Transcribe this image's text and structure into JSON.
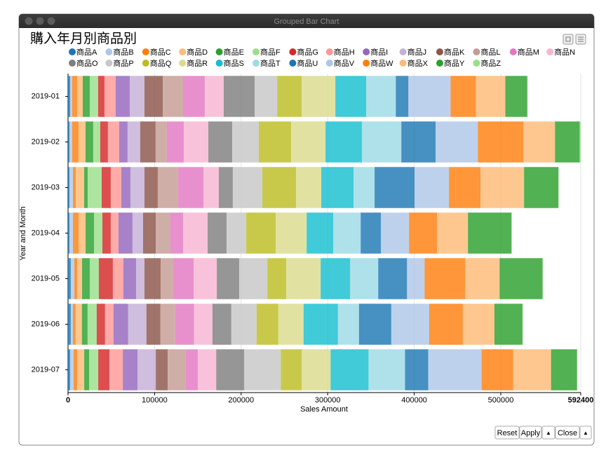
{
  "window_title": "Grouped Bar Chart",
  "buttons": [
    "Reset",
    "Apply",
    "▲",
    "Close",
    "▲"
  ],
  "chart_data": {
    "type": "bar",
    "orientation": "horizontal",
    "stacked": true,
    "title": "購入年月別商品別",
    "x_label": "Sales Amount",
    "y_label": "Year and Month",
    "categories": [
      "2019-01",
      "2019-02",
      "2019-03",
      "2019-04",
      "2019-05",
      "2019-06",
      "2019-07"
    ],
    "xlim": [
      0,
      592400
    ],
    "xticks": [
      0,
      100000,
      200000,
      300000,
      400000,
      500000,
      592400
    ],
    "grid": true,
    "series": [
      {
        "name": "商品A",
        "color": "#1f77b4",
        "values": [
          2400,
          1600,
          1600,
          1600,
          3200,
          3200,
          2400
        ]
      },
      {
        "name": "商品B",
        "color": "#aec7e8",
        "values": [
          2400,
          3200,
          4100,
          4100,
          4100,
          2400,
          4100
        ]
      },
      {
        "name": "商品C",
        "color": "#ff7f0e",
        "values": [
          5700,
          7300,
          3200,
          6500,
          3200,
          3200,
          4100
        ]
      },
      {
        "name": "商品D",
        "color": "#ffbb78",
        "values": [
          6500,
          8100,
          9700,
          8100,
          5700,
          7300,
          8100
        ]
      },
      {
        "name": "商品E",
        "color": "#2ca02c",
        "values": [
          8100,
          8900,
          4100,
          9700,
          8900,
          6500,
          5700
        ]
      },
      {
        "name": "商品F",
        "color": "#98df8a",
        "values": [
          9700,
          8100,
          16200,
          9700,
          10500,
          10500,
          10500
        ]
      },
      {
        "name": "商品G",
        "color": "#d62728",
        "values": [
          7300,
          8900,
          10500,
          9700,
          16200,
          9700,
          13000
        ]
      },
      {
        "name": "商品H",
        "color": "#ff9896",
        "values": [
          13000,
          13000,
          12200,
          8900,
          12200,
          9700,
          15400
        ]
      },
      {
        "name": "商品I",
        "color": "#9467bd",
        "values": [
          16200,
          9700,
          10500,
          16200,
          14600,
          17000,
          17000
        ]
      },
      {
        "name": "商品J",
        "color": "#c5b0d5",
        "values": [
          17000,
          14600,
          16200,
          12200,
          9700,
          21100,
          21100
        ]
      },
      {
        "name": "商品K",
        "color": "#8c564b",
        "values": [
          21100,
          17800,
          15400,
          14600,
          18700,
          16200,
          13800
        ]
      },
      {
        "name": "商品L",
        "color": "#c49c94",
        "values": [
          23500,
          13000,
          23500,
          17000,
          14600,
          17000,
          20300
        ]
      },
      {
        "name": "商品M",
        "color": "#e377c2",
        "values": [
          25100,
          19500,
          29200,
          14600,
          23500,
          21900,
          14600
        ]
      },
      {
        "name": "商品N",
        "color": "#f7b6d2",
        "values": [
          21900,
          28400,
          17800,
          28400,
          26800,
          21100,
          21100
        ]
      },
      {
        "name": "商品O",
        "color": "#7f7f7f",
        "values": [
          35700,
          27600,
          16200,
          21900,
          26000,
          21900,
          32400
        ]
      },
      {
        "name": "商品P",
        "color": "#c7c7c7",
        "values": [
          26000,
          30800,
          34100,
          22700,
          32400,
          29200,
          42200
        ]
      },
      {
        "name": "商品Q",
        "color": "#bcbd22",
        "values": [
          28400,
          37300,
          38900,
          34100,
          21900,
          25100,
          24300
        ]
      },
      {
        "name": "商品R",
        "color": "#dbdb8d",
        "values": [
          38900,
          39700,
          29200,
          35700,
          39700,
          29200,
          33300
        ]
      },
      {
        "name": "商品S",
        "color": "#17becf",
        "values": [
          35700,
          42200,
          37300,
          30800,
          34100,
          39700,
          43800
        ]
      },
      {
        "name": "商品T",
        "color": "#9edae5",
        "values": [
          34100,
          45400,
          24300,
          31600,
          32400,
          24300,
          42200
        ]
      },
      {
        "name": "商品U",
        "color": "#1f77b4",
        "values": [
          14600,
          39700,
          46200,
          23500,
          33300,
          37300,
          26800
        ]
      },
      {
        "name": "商品V",
        "color": "#aec7e8",
        "values": [
          48700,
          48700,
          39700,
          32400,
          20300,
          43800,
          61600
        ]
      },
      {
        "name": "商品W",
        "color": "#ff7f0e",
        "values": [
          29200,
          52700,
          36500,
          32400,
          47000,
          38900,
          36500
        ]
      },
      {
        "name": "商品X",
        "color": "#ffbb78",
        "values": [
          34100,
          36500,
          50300,
          35700,
          39700,
          36500,
          43800
        ]
      },
      {
        "name": "商品Y",
        "color": "#2ca02c",
        "values": [
          25100,
          28400,
          39700,
          50300,
          49500,
          32400,
          30000
        ]
      },
      {
        "name": "商品Z",
        "color": "#98df8a",
        "values": [
          800,
          1300,
          400,
          400,
          400,
          400,
          400
        ]
      }
    ]
  }
}
